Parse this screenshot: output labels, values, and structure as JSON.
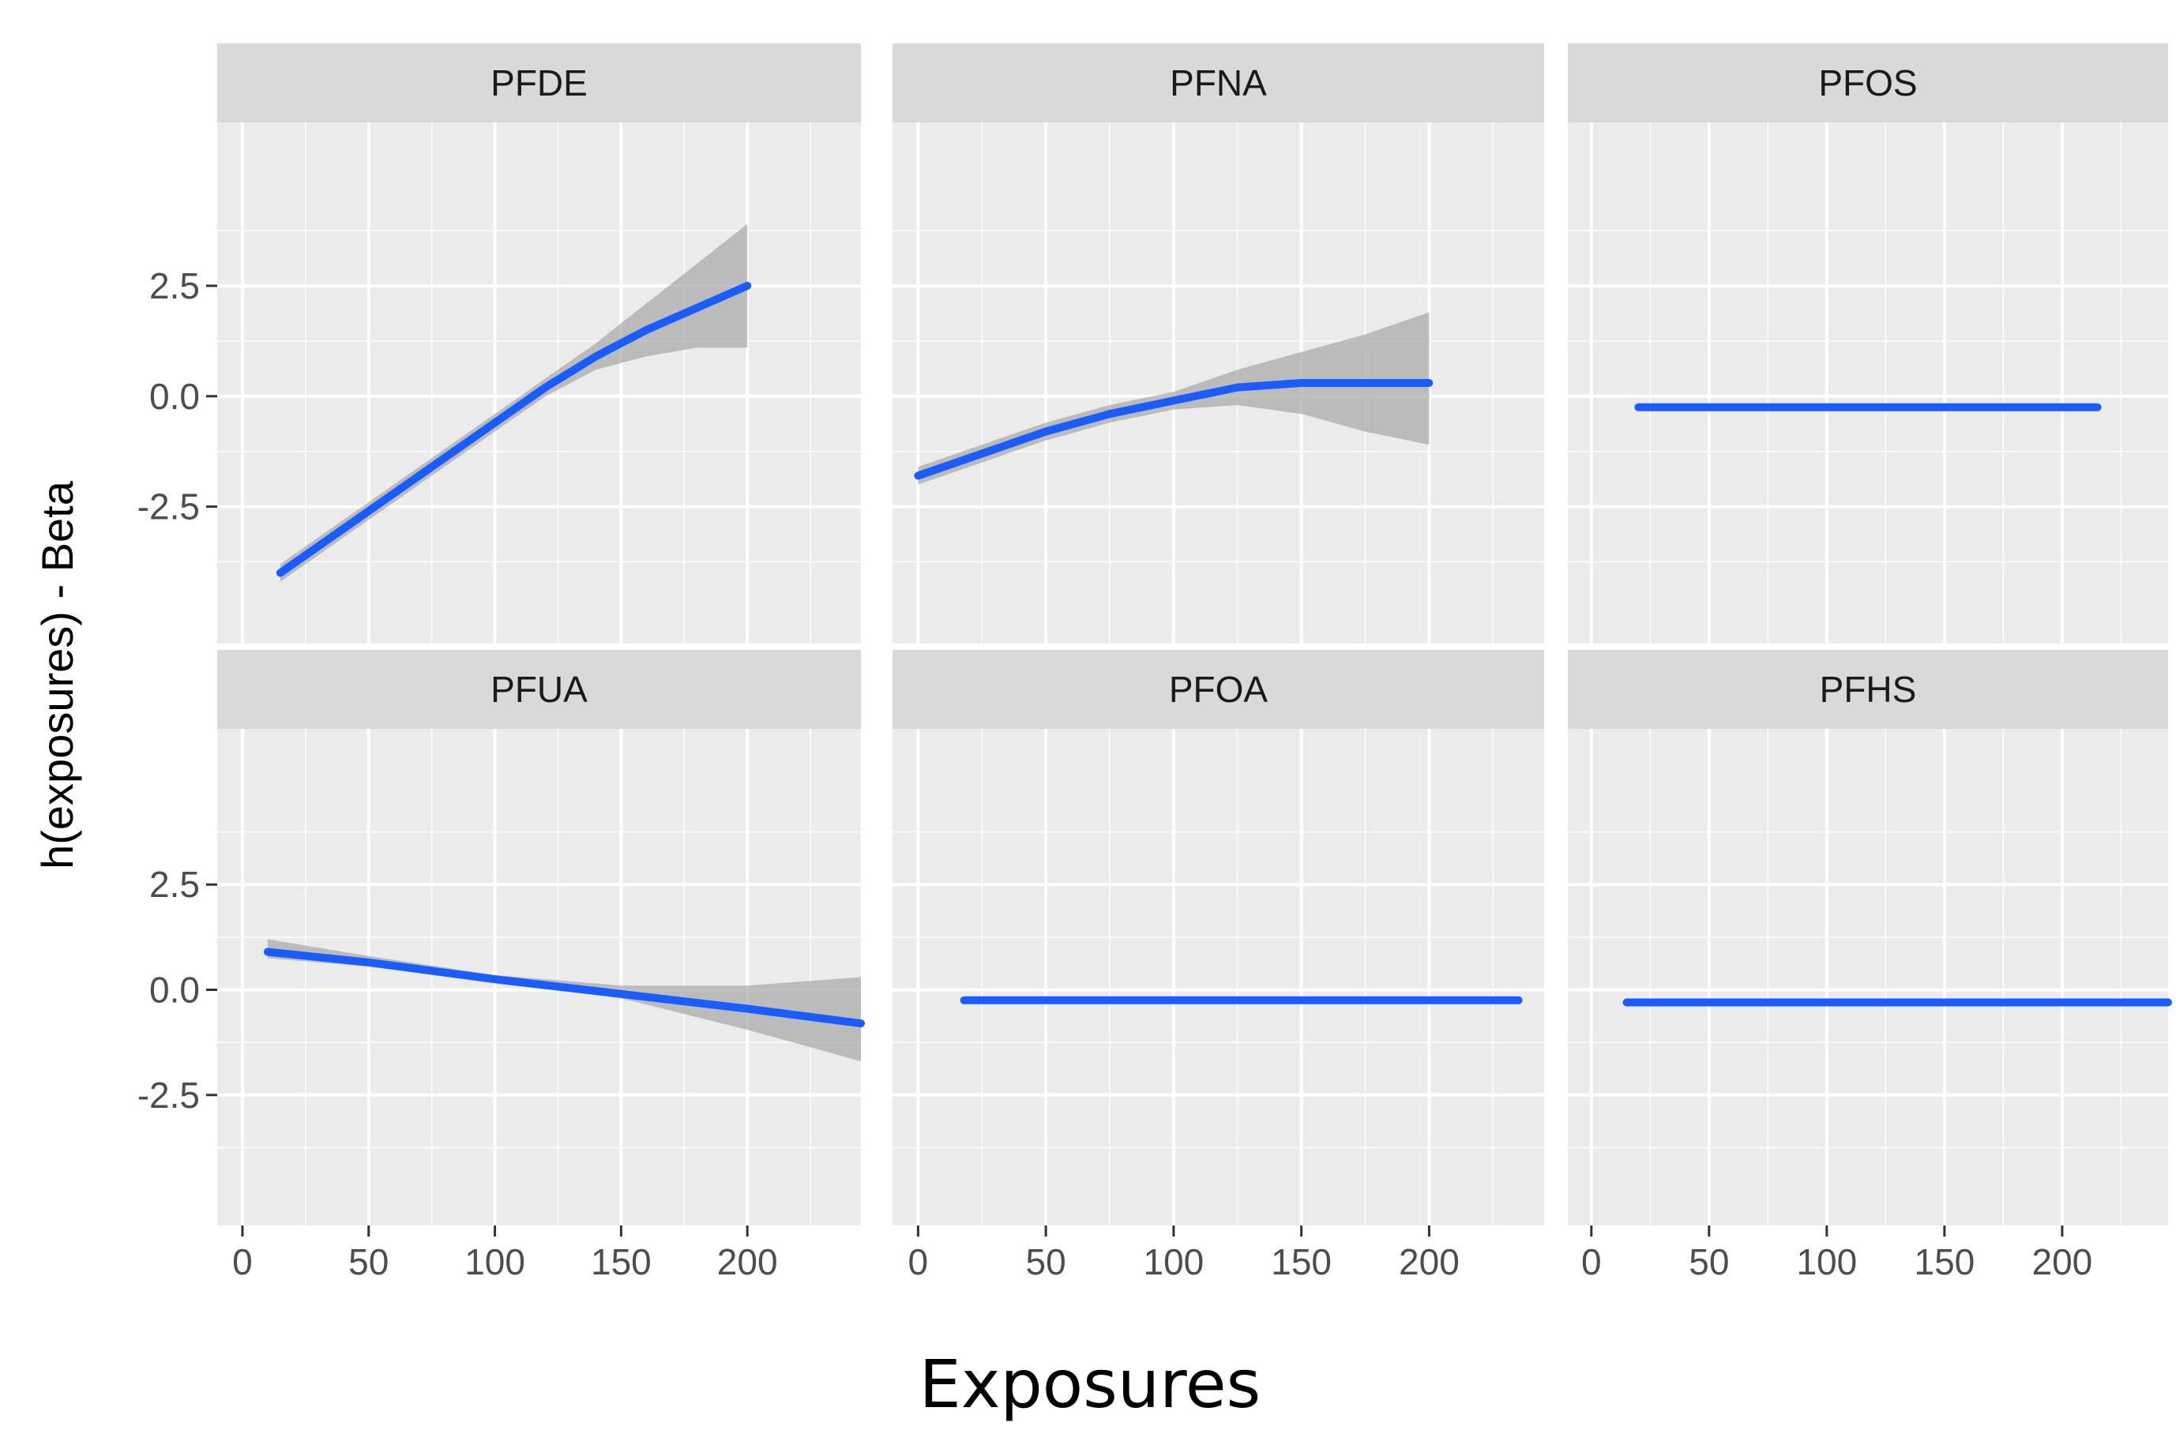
{
  "chart_data": {
    "type": "line",
    "layout": "facet-grid-2x3",
    "xlabel": "Exposures",
    "ylabel": "h(exposures) - Beta",
    "xlim": [
      -10,
      245
    ],
    "ylim": [
      -5.6,
      6.2
    ],
    "x_ticks": [
      0,
      50,
      100,
      150,
      200
    ],
    "x_tick_labels": [
      "0",
      "50",
      "100",
      "150",
      "200"
    ],
    "y_ticks": [
      -2.5,
      0.0,
      2.5
    ],
    "y_tick_labels": [
      "-2.5",
      "0.0",
      "2.5"
    ],
    "grid": true,
    "colors": {
      "line": "#1a5cff",
      "ribbon": "#a6a6a6",
      "panel_bg": "#ebebeb",
      "strip_bg": "#d9d9d9",
      "grid_major": "#ffffff",
      "tick": "#333333"
    },
    "facets": [
      {
        "name": "PFDE",
        "x": [
          15,
          40,
          60,
          80,
          100,
          120,
          140,
          160,
          180,
          200
        ],
        "y": [
          -4.0,
          -3.0,
          -2.2,
          -1.4,
          -0.6,
          0.2,
          0.9,
          1.5,
          2.0,
          2.5
        ],
        "lower": [
          -4.2,
          -3.2,
          -2.4,
          -1.6,
          -0.8,
          0.0,
          0.6,
          0.9,
          1.1,
          1.1
        ],
        "upper": [
          -3.8,
          -2.8,
          -2.0,
          -1.2,
          -0.4,
          0.4,
          1.2,
          2.1,
          3.0,
          3.9
        ]
      },
      {
        "name": "PFNA",
        "x": [
          0,
          25,
          50,
          75,
          100,
          125,
          150,
          175,
          200
        ],
        "y": [
          -1.8,
          -1.3,
          -0.8,
          -0.4,
          -0.1,
          0.2,
          0.3,
          0.3,
          0.3
        ],
        "lower": [
          -2.0,
          -1.5,
          -1.0,
          -0.6,
          -0.3,
          -0.2,
          -0.4,
          -0.8,
          -1.1
        ],
        "upper": [
          -1.6,
          -1.1,
          -0.6,
          -0.2,
          0.1,
          0.6,
          1.0,
          1.4,
          1.9
        ]
      },
      {
        "name": "PFOS",
        "x": [
          20,
          215
        ],
        "y": [
          -0.25,
          -0.25
        ],
        "lower": [
          -0.25,
          -0.25
        ],
        "upper": [
          -0.25,
          -0.25
        ]
      },
      {
        "name": "PFUA",
        "x": [
          10,
          50,
          100,
          150,
          200,
          245
        ],
        "y": [
          0.9,
          0.65,
          0.25,
          -0.1,
          -0.45,
          -0.8
        ],
        "lower": [
          0.75,
          0.55,
          0.2,
          -0.2,
          -0.95,
          -1.7
        ],
        "upper": [
          1.2,
          0.8,
          0.35,
          0.1,
          0.1,
          0.3
        ]
      },
      {
        "name": "PFOA",
        "x": [
          18,
          235
        ],
        "y": [
          -0.25,
          -0.25
        ],
        "lower": [
          -0.25,
          -0.25
        ],
        "upper": [
          -0.25,
          -0.25
        ]
      },
      {
        "name": "PFHS",
        "x": [
          15,
          245
        ],
        "y": [
          -0.3,
          -0.3
        ],
        "lower": [
          -0.3,
          -0.3
        ],
        "upper": [
          -0.3,
          -0.3
        ]
      }
    ]
  }
}
